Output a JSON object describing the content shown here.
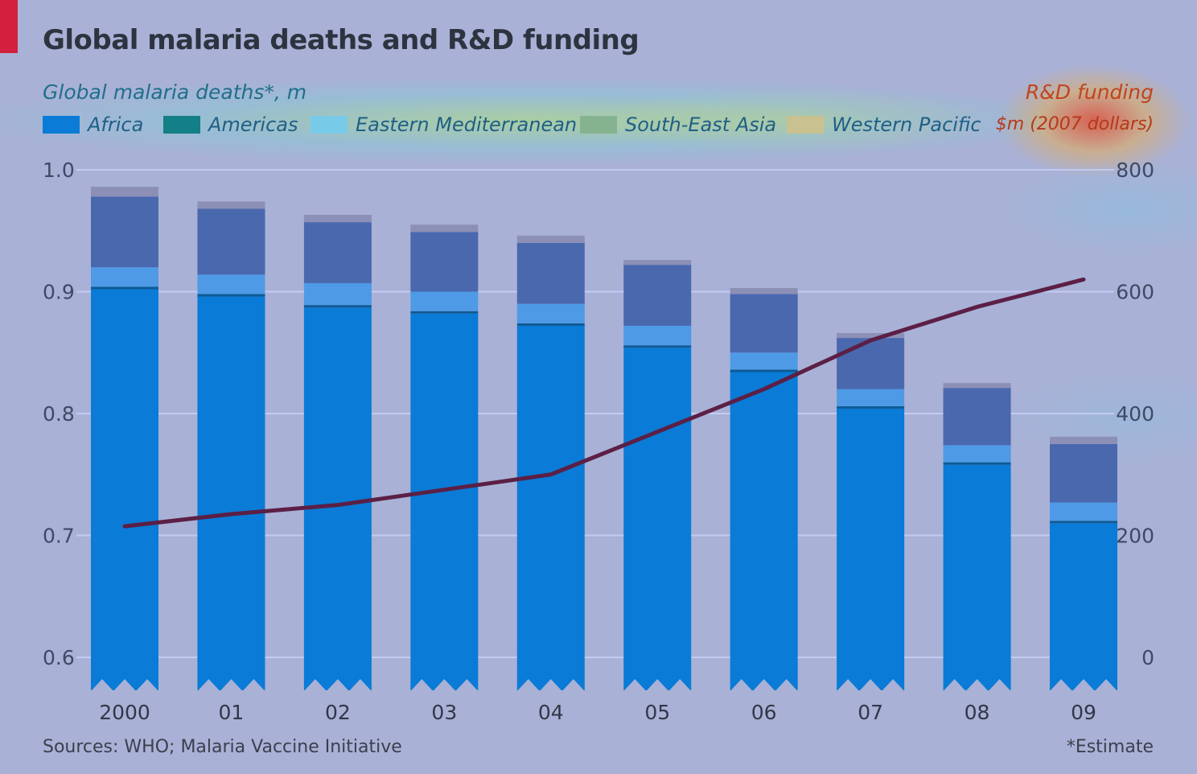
{
  "header": {
    "title": "Global malaria deaths and R&D funding",
    "left_axis_title": "Global malaria deaths*, m",
    "right_axis_title": "R&D funding",
    "right_axis_unit": "$m (2007 dollars)"
  },
  "footer": {
    "source": "Sources: WHO; Malaria Vaccine Initiative",
    "note": "*Estimate"
  },
  "legend": [
    {
      "label": "Africa",
      "color": "#0a7bd6"
    },
    {
      "label": "Americas",
      "color": "#137f86"
    },
    {
      "label": "Eastern Mediterranean",
      "color": "#78cbe8"
    },
    {
      "label": "South-East Asia",
      "color": "#86b38f"
    },
    {
      "label": "Western Pacific",
      "color": "#c9c18f"
    }
  ],
  "colors": {
    "africa": "#0a7bd6",
    "americas": "#0d5a94",
    "eastern_mediterranean": "#4e9ae6",
    "south_east_asia": "#4a68ae",
    "western_pacific": "#8c8fb6",
    "funding_line": "#5c1f45",
    "gridline": "#c3cbf2",
    "background": "#a9b1d6"
  },
  "chart_data": {
    "type": "bar",
    "stacked": true,
    "categories": [
      "2000",
      "01",
      "02",
      "03",
      "04",
      "05",
      "06",
      "07",
      "08",
      "09"
    ],
    "series": [
      {
        "name": "Africa",
        "values": [
          0.902,
          0.896,
          0.887,
          0.882,
          0.872,
          0.854,
          0.834,
          0.804,
          0.758,
          0.71
        ]
      },
      {
        "name": "Americas",
        "values": [
          0.002,
          0.002,
          0.002,
          0.002,
          0.002,
          0.002,
          0.002,
          0.002,
          0.002,
          0.002
        ]
      },
      {
        "name": "Eastern Mediterranean",
        "values": [
          0.016,
          0.016,
          0.018,
          0.016,
          0.016,
          0.016,
          0.014,
          0.014,
          0.014,
          0.015
        ]
      },
      {
        "name": "South-East Asia",
        "values": [
          0.058,
          0.054,
          0.05,
          0.049,
          0.05,
          0.05,
          0.048,
          0.042,
          0.047,
          0.048
        ]
      },
      {
        "name": "Western Pacific",
        "values": [
          0.008,
          0.006,
          0.006,
          0.006,
          0.006,
          0.004,
          0.005,
          0.004,
          0.004,
          0.006
        ]
      }
    ],
    "line": {
      "name": "R&D funding",
      "axis": "right",
      "values": [
        215,
        235,
        250,
        275,
        300,
        370,
        440,
        520,
        575,
        620
      ]
    },
    "y_left": {
      "ylim": [
        0.6,
        1.0
      ],
      "ticks": [
        "1.0",
        "0.9",
        "0.8",
        "0.7",
        "0.6"
      ],
      "tick_values": [
        1.0,
        0.9,
        0.8,
        0.7,
        0.6
      ]
    },
    "y_right": {
      "ylim": [
        0,
        800
      ],
      "ticks": [
        "800",
        "600",
        "400",
        "200",
        "0"
      ],
      "tick_values": [
        800,
        600,
        400,
        200,
        0
      ]
    },
    "axis_break": true,
    "grid": true
  }
}
